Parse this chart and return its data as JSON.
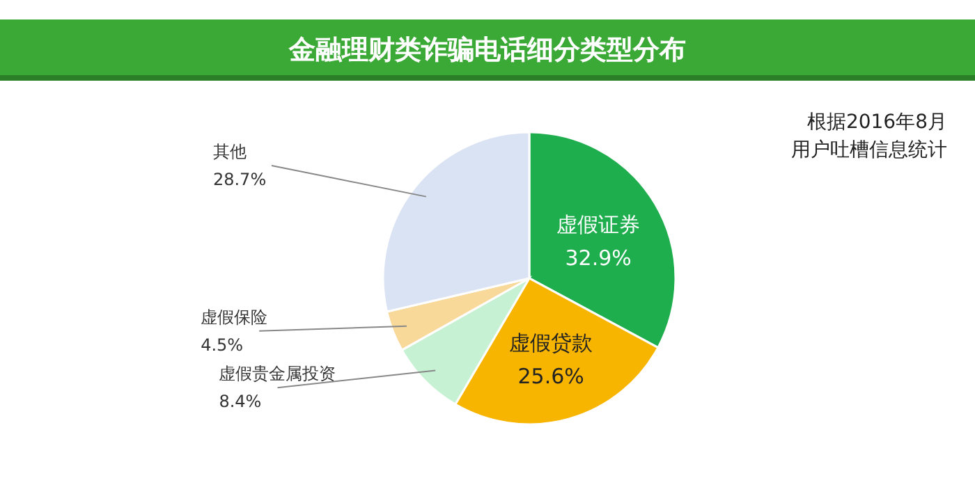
{
  "chart_data": {
    "type": "pie",
    "title": "金融理财类诈骗电话细分类型分布",
    "categories": [
      "虚假证券",
      "虚假贷款",
      "虚假贵金属投资",
      "虚假保险",
      "其他"
    ],
    "values": [
      32.9,
      25.6,
      8.4,
      4.5,
      28.7
    ],
    "value_labels": [
      "32.9%",
      "25.6%",
      "8.4%",
      "4.5%",
      "28.7%"
    ],
    "colors": [
      "#1fae4e",
      "#f7b500",
      "#c6f1d3",
      "#f9d99a",
      "#dae3f3"
    ],
    "annotations": [
      "根据2016年8月用户吐槽信息统计"
    ]
  }
}
